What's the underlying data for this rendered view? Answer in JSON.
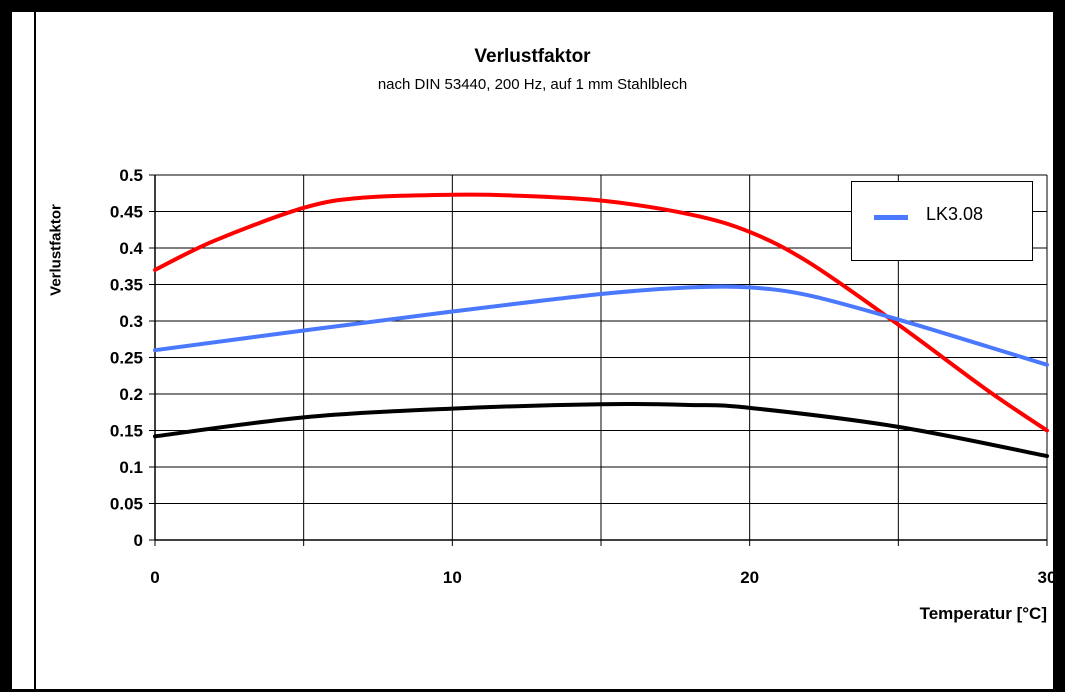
{
  "chart_data": {
    "type": "line",
    "title": "Verlustfaktor",
    "subtitle": "nach DIN 53440, 200 Hz, auf 1 mm Stahlblech",
    "xlabel": "Temperatur [°C]",
    "ylabel": "Verlustfaktor",
    "xlim": [
      0,
      30
    ],
    "ylim": [
      0,
      0.5
    ],
    "xticks": [
      "0",
      "10",
      "20",
      "30"
    ],
    "yticks": [
      "0",
      "0.05",
      "0.1",
      "0.15",
      "0.2",
      "0.25",
      "0.3",
      "0.35",
      "0.4",
      "0.45",
      "0.5"
    ],
    "grid": true,
    "legend_position": "top-right",
    "series": [
      {
        "color": "#ff0000",
        "x": [
          0,
          2,
          5,
          7,
          10,
          12,
          15,
          18,
          20,
          22,
          25,
          28,
          30
        ],
        "y": [
          0.37,
          0.41,
          0.455,
          0.469,
          0.473,
          0.472,
          0.465,
          0.446,
          0.422,
          0.38,
          0.295,
          0.205,
          0.15
        ]
      },
      {
        "name": "LK3.08",
        "color": "#4a78ff",
        "x": [
          0,
          5,
          10,
          15,
          18,
          20,
          22,
          25,
          28,
          30
        ],
        "y": [
          0.26,
          0.287,
          0.313,
          0.337,
          0.346,
          0.346,
          0.335,
          0.302,
          0.265,
          0.24
        ]
      },
      {
        "color": "#000000",
        "x": [
          0,
          5,
          10,
          15,
          18,
          20,
          25,
          30
        ],
        "y": [
          0.142,
          0.168,
          0.18,
          0.186,
          0.185,
          0.181,
          0.155,
          0.115
        ]
      }
    ]
  }
}
